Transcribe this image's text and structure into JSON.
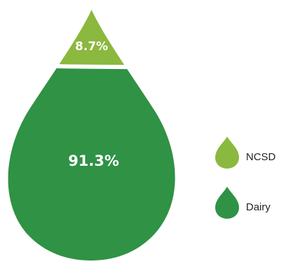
{
  "chart_data": {
    "type": "pie",
    "title": "",
    "slices": [
      {
        "name": "NCSD",
        "value": 8.7,
        "label": "8.7%",
        "color": "#8bb83e"
      },
      {
        "name": "Dairy",
        "value": 91.3,
        "label": "91.3%",
        "color": "#2f9245"
      }
    ],
    "legend": {
      "placement": "right",
      "entries": [
        {
          "label": "NCSD",
          "color": "#8bb83e"
        },
        {
          "label": "Dairy",
          "color": "#2f9245"
        }
      ]
    }
  }
}
